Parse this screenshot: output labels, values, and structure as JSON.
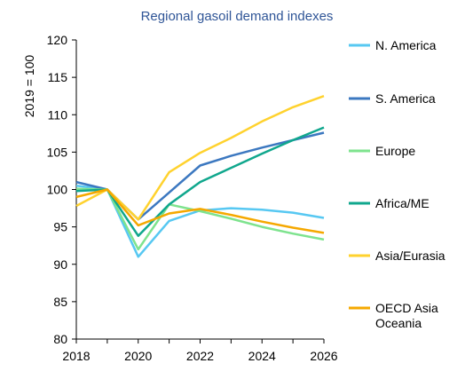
{
  "chart_data": {
    "type": "line",
    "title": "Regional gasoil demand indexes",
    "xlabel": "",
    "ylabel": "2019 = 100",
    "x": [
      2018,
      2019,
      2020,
      2021,
      2022,
      2023,
      2024,
      2025,
      2026
    ],
    "xticks": [
      "2018",
      "2020",
      "2022",
      "2024",
      "2026"
    ],
    "yticks": [
      "80",
      "85",
      "90",
      "95",
      "100",
      "105",
      "110",
      "115",
      "120"
    ],
    "xlim": [
      2018,
      2026
    ],
    "ylim": [
      80,
      120
    ],
    "grid": false,
    "legend_position": "right",
    "series": [
      {
        "name": "N. America",
        "color": "#57c8f2",
        "values": [
          100.5,
          100,
          91.0,
          95.8,
          97.2,
          97.5,
          97.3,
          96.9,
          96.2
        ]
      },
      {
        "name": "S. America",
        "color": "#3c78c0",
        "values": [
          101.0,
          100,
          96.0,
          99.6,
          103.2,
          104.5,
          105.6,
          106.6,
          107.6
        ]
      },
      {
        "name": "Europe",
        "color": "#7ee38e",
        "values": [
          100.1,
          100,
          92.0,
          98.0,
          97.1,
          96.1,
          95.0,
          94.1,
          93.3
        ]
      },
      {
        "name": "Africa/ME",
        "color": "#10a78d",
        "values": [
          99.8,
          100,
          93.8,
          98.0,
          101.0,
          102.9,
          104.8,
          106.6,
          108.3
        ]
      },
      {
        "name": "Asia/Eurasia",
        "color": "#ffd22e",
        "values": [
          97.8,
          100,
          96.0,
          102.3,
          104.9,
          106.9,
          109.1,
          111.0,
          112.5
        ]
      },
      {
        "name": "OECD Asia Oceania",
        "color": "#f5a800",
        "values": [
          99.0,
          100,
          95.2,
          96.8,
          97.4,
          96.6,
          95.7,
          94.9,
          94.2
        ]
      }
    ],
    "legend_lines": [
      [
        "N. America"
      ],
      [
        "S. America"
      ],
      [
        "Europe"
      ],
      [
        "Africa/ME"
      ],
      [
        "Asia/Eurasia"
      ],
      [
        "OECD Asia",
        "Oceania"
      ]
    ]
  }
}
